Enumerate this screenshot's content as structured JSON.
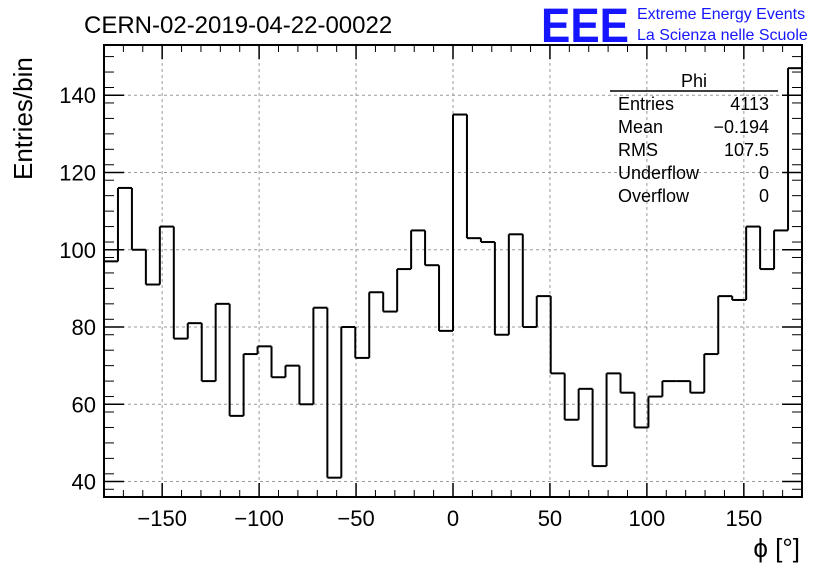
{
  "header": {
    "title": "CERN-02-2019-04-22-00022",
    "logo_mark": "EEE",
    "logo_line1": "Extreme Energy Events",
    "logo_line2": "La Scienza nelle Scuole",
    "logo_color": "#1515ff"
  },
  "stats": {
    "name": "Phi",
    "rows": [
      {
        "label": "Entries",
        "value": "4113"
      },
      {
        "label": "Mean",
        "value": "−0.194"
      },
      {
        "label": "RMS",
        "value": "107.5"
      },
      {
        "label": "Underflow",
        "value": "0"
      },
      {
        "label": "Overflow",
        "value": "0"
      }
    ]
  },
  "chart_data": {
    "type": "bar",
    "style": "step-histogram",
    "title": "CERN-02-2019-04-22-00022",
    "xlabel": "ϕ [°]",
    "ylabel": "Entries/bin",
    "xlim": [
      -180,
      180
    ],
    "ylim": [
      36,
      153
    ],
    "bin_width": 7.2,
    "xticks": [
      -150,
      -100,
      -50,
      0,
      50,
      100,
      150
    ],
    "xtick_labels": [
      "−150",
      "−100",
      "−50",
      "0",
      "50",
      "100",
      "150"
    ],
    "yticks": [
      40,
      60,
      80,
      100,
      120,
      140
    ],
    "grid": true,
    "values": [
      97,
      116,
      100,
      91,
      106,
      77,
      81,
      66,
      86,
      57,
      73,
      75,
      67,
      70,
      60,
      85,
      41,
      80,
      72,
      89,
      84,
      95,
      105,
      96,
      79,
      135,
      103,
      102,
      78,
      104,
      80,
      88,
      68,
      56,
      64,
      44,
      68,
      63,
      54,
      62,
      66,
      66,
      63,
      73,
      88,
      87,
      106,
      95,
      105,
      147
    ]
  }
}
